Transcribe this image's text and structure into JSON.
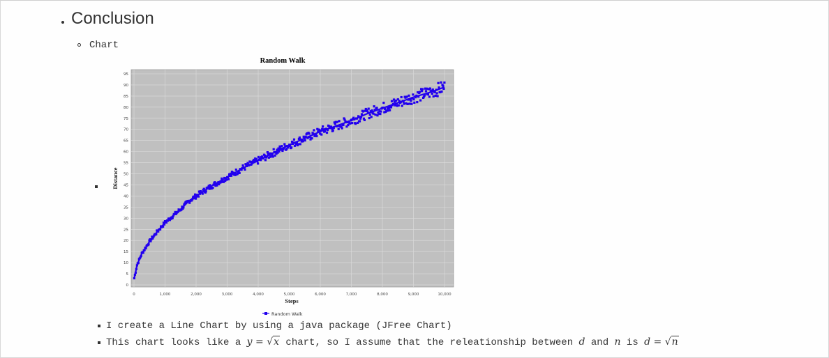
{
  "section": {
    "title": "Conclusion"
  },
  "subsection": {
    "label": "Chart"
  },
  "chart_data": {
    "type": "scatter",
    "title": "Random Walk",
    "xlabel": "Steps",
    "ylabel": "Distance",
    "xlim": [
      0,
      10000
    ],
    "ylim": [
      0,
      95
    ],
    "xticks": [
      "0",
      "1,000",
      "2,000",
      "3,000",
      "4,000",
      "5,000",
      "6,000",
      "7,000",
      "8,000",
      "9,000",
      "10,000"
    ],
    "yticks": [
      "0",
      "5",
      "10",
      "15",
      "20",
      "25",
      "30",
      "35",
      "40",
      "45",
      "50",
      "55",
      "60",
      "65",
      "70",
      "75",
      "80",
      "85",
      "90",
      "95"
    ],
    "legend_position": "bottom",
    "grid": true,
    "colors": {
      "series": "#2200ee",
      "plot_bg": "#c0c0c0",
      "grid": "#dddddd"
    },
    "series": [
      {
        "name": "Random Walk",
        "x": [
          10,
          100,
          250,
          500,
          750,
          1000,
          1250,
          1500,
          1750,
          2000,
          2500,
          3000,
          3500,
          4000,
          4500,
          5000,
          5500,
          6000,
          6500,
          7000,
          7500,
          8000,
          8500,
          9000,
          9500,
          10000
        ],
        "y": [
          3,
          9,
          14,
          19.5,
          24,
          28,
          31,
          34,
          37.5,
          40,
          44.5,
          48.5,
          52.5,
          56,
          59.5,
          63,
          66,
          69,
          71.5,
          74,
          77,
          79.5,
          82,
          84.5,
          86.5,
          89
        ]
      }
    ]
  },
  "items": [
    {
      "text": "I create a Line Chart by using a java package (JFree Chart)"
    },
    {
      "pre": "This chart looks like a ",
      "math1_lhs": "y",
      "math1_eq": " = ",
      "math1_arg": "x",
      "mid": " chart, so I assume that the releationship between ",
      "var_d": "d",
      "and": " and ",
      "var_n": "n",
      "is": " is ",
      "math2_lhs": "d",
      "math2_eq": " = ",
      "math2_arg": "n"
    }
  ]
}
